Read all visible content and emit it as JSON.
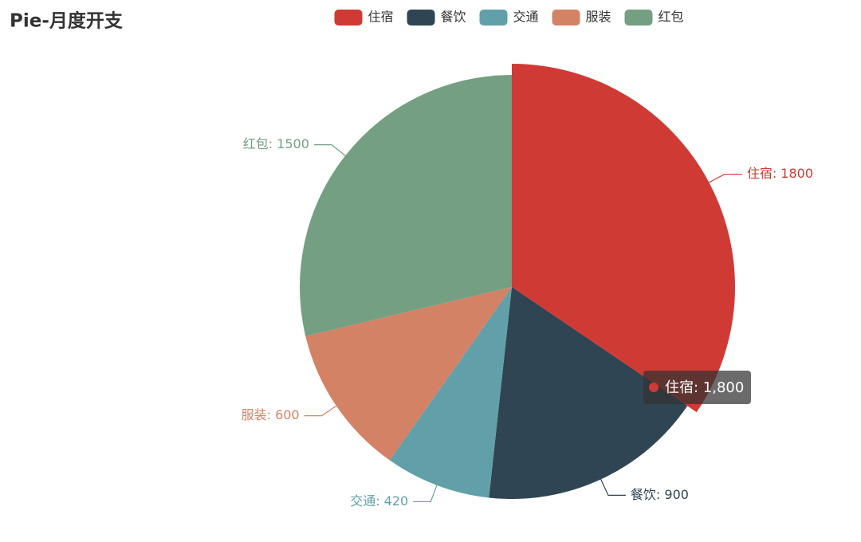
{
  "chart_data": {
    "type": "pie",
    "title": "Pie-月度开支",
    "categories": [
      "住宿",
      "餐饮",
      "交通",
      "服装",
      "红包"
    ],
    "values": [
      1800,
      900,
      420,
      600,
      1500
    ],
    "value_labels": [
      "住宿: 1800",
      "餐饮: 900",
      "交通: 420",
      "服装: 600",
      "红包: 1500"
    ],
    "colors": [
      "#d03a34",
      "#2f4554",
      "#61a0a8",
      "#d48265",
      "#749f83"
    ],
    "legend": "top",
    "tooltip": {
      "label": "住宿: 1,800"
    }
  }
}
